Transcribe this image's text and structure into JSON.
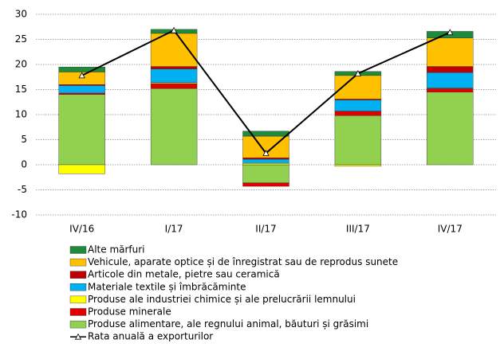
{
  "chart_data": {
    "type": "bar",
    "stacked": true,
    "categories": [
      "IV/16",
      "I/17",
      "II/17",
      "III/17",
      "IV/17"
    ],
    "ylim": [
      -10,
      30
    ],
    "yticks": [
      -10,
      -5,
      0,
      5,
      10,
      15,
      20,
      25,
      30
    ],
    "grid": true,
    "series": [
      {
        "name": "Alte mărfuri",
        "color": "#1e8a3c",
        "values": [
          1.0,
          0.8,
          1.0,
          0.8,
          1.3
        ]
      },
      {
        "name": "Vehicule, aparate optice și de înregistrat sau de reprodus sunete",
        "color": "#ffc000",
        "values": [
          2.5,
          6.6,
          4.3,
          4.7,
          5.7
        ]
      },
      {
        "name": "Articole din metale, pietre sau ceramică",
        "color": "#c00000",
        "values": [
          0.2,
          0.5,
          0.3,
          0.2,
          1.2
        ]
      },
      {
        "name": "Materiale textile și îmbrăcăminte",
        "color": "#00b0f0",
        "values": [
          1.5,
          2.7,
          0.8,
          2.2,
          3.1
        ]
      },
      {
        "name": "Produse ale industriei chimice și ale prelucrării lemnului",
        "color": "#ffff00",
        "values": [
          -1.8,
          0.2,
          0.3,
          -0.3,
          0.1
        ]
      },
      {
        "name": "Produse minerale",
        "color": "#e00000",
        "values": [
          0.3,
          1.0,
          -0.7,
          0.9,
          0.7
        ]
      },
      {
        "name": "Produse alimentare, ale regnului animal, băuturi și grăsimi",
        "color": "#92d050",
        "values": [
          14.0,
          15.2,
          -3.6,
          9.8,
          14.5
        ]
      },
      {
        "name": "Rata anuală a exporturilor",
        "type": "line",
        "color": "#000000",
        "values": [
          17.8,
          26.8,
          2.3,
          18.2,
          26.4
        ]
      }
    ]
  }
}
